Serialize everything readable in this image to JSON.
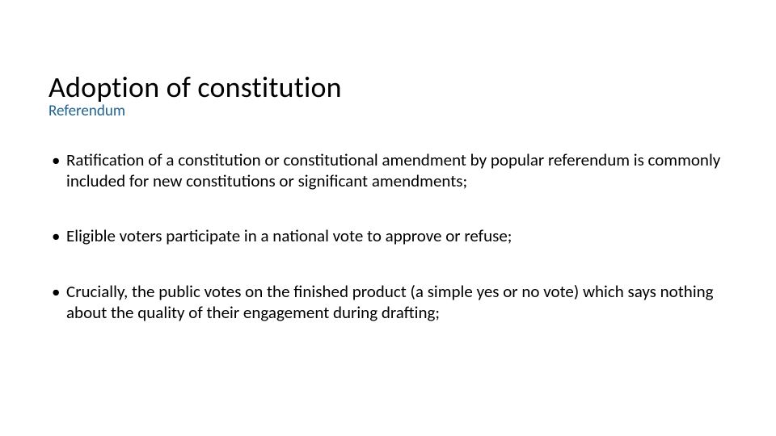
{
  "title": "Adoption of constitution",
  "subtitle": "Referendum",
  "bullets": [
    "Ratification of a constitution or constitutional amendment by popular referendum is commonly included for new constitutions or significant amendments;",
    "Eligible voters participate in a national vote to approve or refuse;",
    "Crucially, the public votes on the finished product (a simple yes or no vote) which says nothing about the quality of their engagement during drafting;"
  ],
  "colors": {
    "background": "#ffffff",
    "title": "#000000",
    "subtitle": "#1f6391",
    "body": "#000000"
  },
  "typography": {
    "title_fontsize": 36,
    "subtitle_fontsize": 19,
    "body_fontsize": 21,
    "font_family": "Segoe UI / Calibri"
  }
}
